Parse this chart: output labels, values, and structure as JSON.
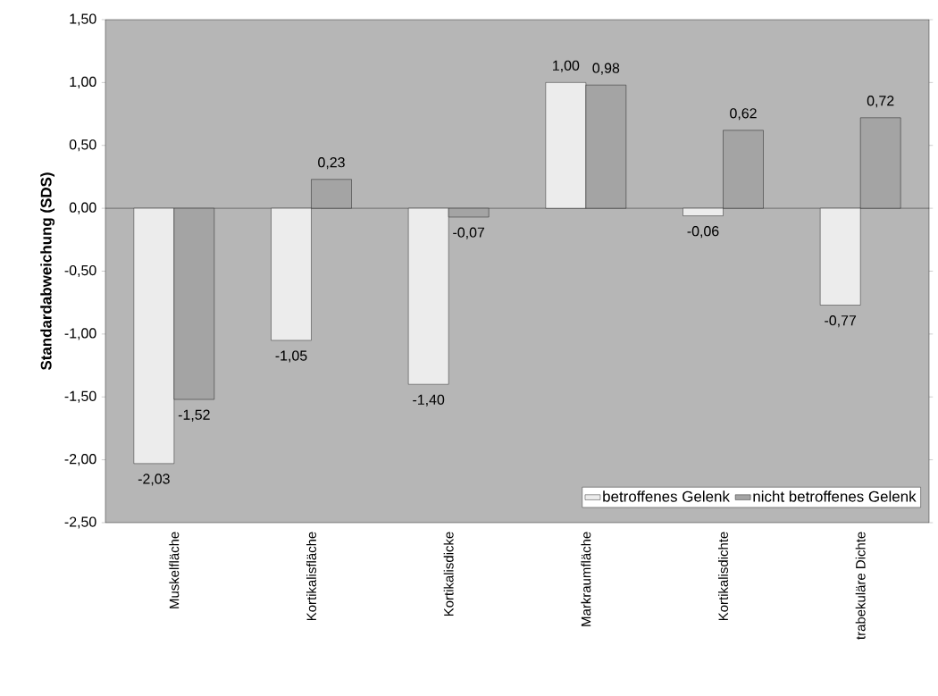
{
  "chart_data": {
    "type": "bar",
    "ylabel": "Standardabweichung (SDS)",
    "categories": [
      "Muskelfläche",
      "Kortikalisfläche",
      "Kortikalisdicke",
      "Markraumfläche",
      "Kortikalisdichte",
      "trabekuläre Dichte"
    ],
    "series": [
      {
        "name": "betroffenes Gelenk",
        "color": "#ececec",
        "values": [
          -2.03,
          -1.05,
          -1.4,
          1.0,
          -0.06,
          -0.77
        ],
        "value_labels": [
          "-2,03",
          "-1,05",
          "-1,40",
          "1,00",
          "-0,06",
          "-0,77"
        ]
      },
      {
        "name": "nicht betroffenes Gelenk",
        "color": "#a4a4a4",
        "values": [
          -1.52,
          0.23,
          -0.07,
          0.98,
          0.62,
          0.72
        ],
        "value_labels": [
          "-1,52",
          "0,23",
          "-0,07",
          "0,98",
          "0,62",
          "0,72"
        ]
      }
    ],
    "ylim": [
      -2.5,
      1.5
    ],
    "yticks": [
      {
        "value": -2.5,
        "label": "-2,50"
      },
      {
        "value": -2.0,
        "label": "-2,00"
      },
      {
        "value": -1.5,
        "label": "-1,50"
      },
      {
        "value": -1.0,
        "label": "-1,00"
      },
      {
        "value": -0.5,
        "label": "-0,50"
      },
      {
        "value": 0.0,
        "label": "0,00"
      },
      {
        "value": 0.5,
        "label": "0,50"
      },
      {
        "value": 1.0,
        "label": "1,00"
      },
      {
        "value": 1.5,
        "label": "1,50"
      }
    ],
    "legend": "bottom right"
  }
}
